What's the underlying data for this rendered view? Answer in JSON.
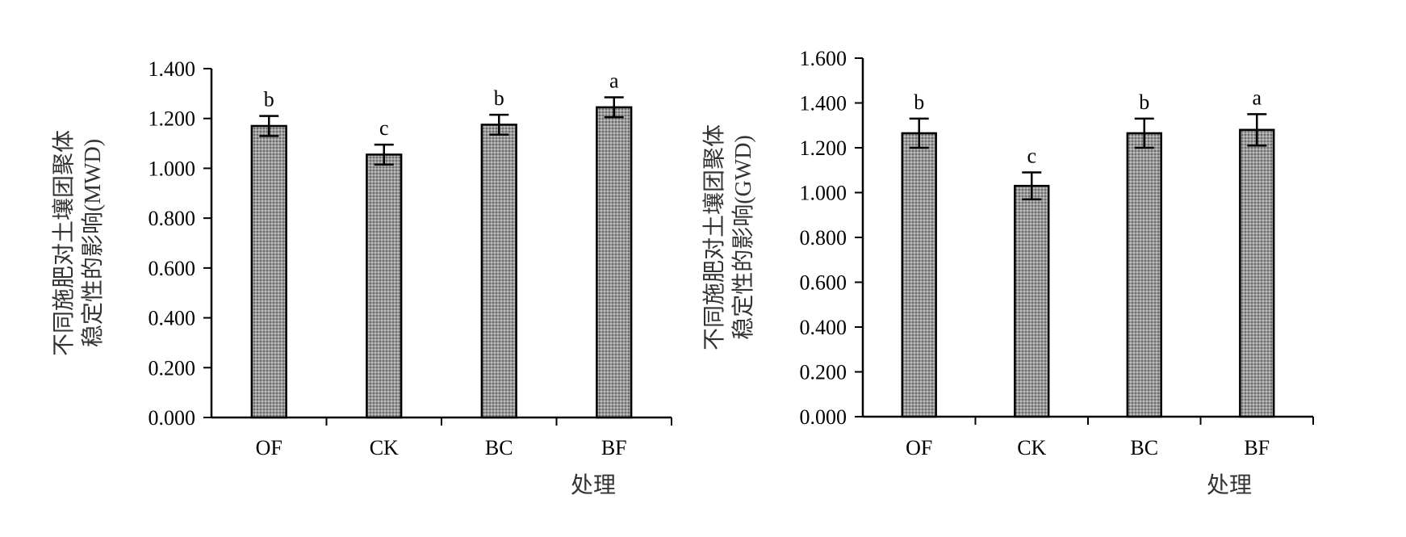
{
  "chart_data": [
    {
      "type": "bar",
      "categories": [
        "OF",
        "CK",
        "BC",
        "BF"
      ],
      "values": [
        1.17,
        1.055,
        1.175,
        1.245
      ],
      "errors": [
        0.04,
        0.04,
        0.04,
        0.04
      ],
      "significance": [
        "b",
        "c",
        "b",
        "a"
      ],
      "ylabel_lines": [
        "不同施肥对土壤团聚体",
        "稳定性的影响(MWD)"
      ],
      "xlabel": "处理",
      "ylim": [
        0,
        1.4
      ],
      "yticks": [
        "0.000",
        "0.200",
        "0.400",
        "0.600",
        "0.800",
        "1.000",
        "1.200",
        "1.400"
      ],
      "grid": false,
      "bar_color": "#8a8a8a"
    },
    {
      "type": "bar",
      "categories": [
        "OF",
        "CK",
        "BC",
        "BF"
      ],
      "values": [
        1.265,
        1.03,
        1.265,
        1.28
      ],
      "errors": [
        0.065,
        0.06,
        0.065,
        0.07
      ],
      "significance": [
        "b",
        "c",
        "b",
        "a"
      ],
      "ylabel_lines": [
        "不同施肥对土壤团聚体",
        "稳定性的影响(GWD)"
      ],
      "xlabel": "处理",
      "ylim": [
        0,
        1.6
      ],
      "yticks": [
        "0.000",
        "0.200",
        "0.400",
        "0.600",
        "0.800",
        "1.000",
        "1.200",
        "1.400",
        "1.600"
      ],
      "grid": false,
      "bar_color": "#8a8a8a"
    }
  ]
}
